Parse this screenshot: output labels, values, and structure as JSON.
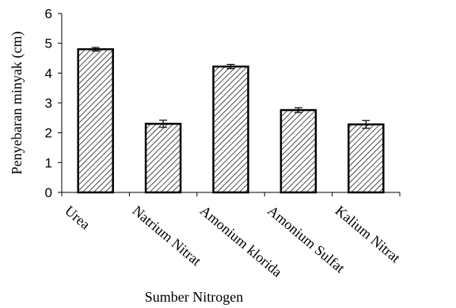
{
  "chart_data": {
    "type": "bar",
    "title": "",
    "xlabel": "Sumber Nitrogen",
    "ylabel": "Penyebaran minyak (cm)",
    "categories": [
      "Urea",
      "Natrium Nitrat",
      "Amonium klorida",
      "Amonium Sulfat",
      "Kalium Nitrat"
    ],
    "values": [
      4.8,
      2.3,
      4.22,
      2.76,
      2.28
    ],
    "errors": [
      0.06,
      0.12,
      0.07,
      0.08,
      0.13
    ],
    "ylim": [
      0,
      6
    ],
    "yticks": [
      "0",
      "1",
      "2",
      "3",
      "4",
      "5",
      "6"
    ],
    "grid": false,
    "legend": "none",
    "bar_fill": "diagonal-hatch",
    "colors": {
      "bar_stroke": "#000000",
      "hatch": "#000000",
      "axis": "#000000"
    }
  }
}
